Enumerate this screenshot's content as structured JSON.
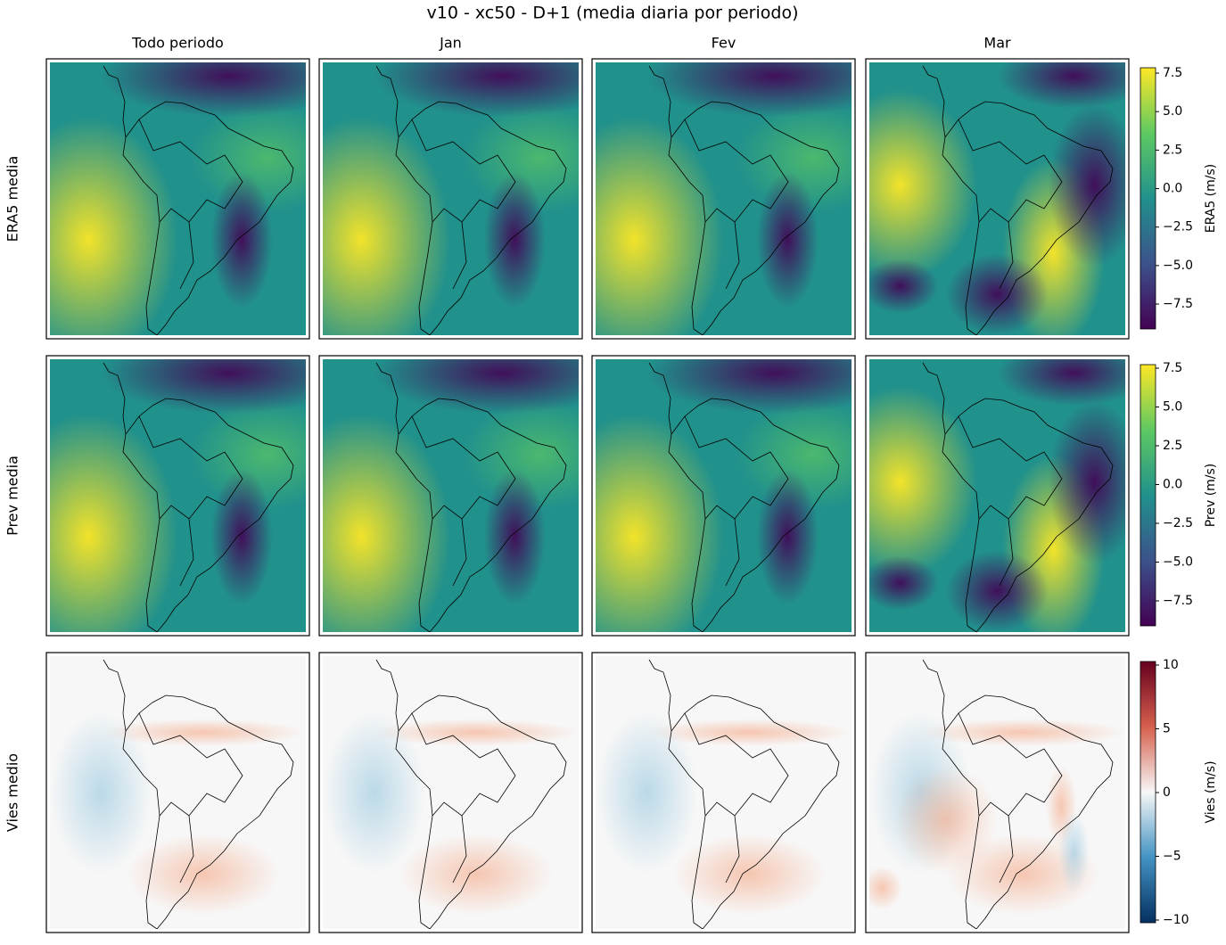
{
  "chart_data": {
    "type": "heatmap",
    "title": "v10 - xc50 - D+1 (media diaria por periodo)",
    "columns": [
      "Todo periodo",
      "Jan",
      "Fev",
      "Mar"
    ],
    "rows": [
      {
        "label": "ERA5 media",
        "colorbar": {
          "label": "ERA5 (m/s)",
          "lim": [
            -9.12,
            7.85
          ],
          "ticks": [
            {
              "value": -7.5,
              "label": "−7.5"
            },
            {
              "value": -5,
              "label": "−5.0"
            },
            {
              "value": -2.5,
              "label": "−2.5"
            },
            {
              "value": 0,
              "label": "0.0"
            },
            2.5,
            {
              "value": 5,
              "label": "5.0"
            },
            7.5
          ],
          "colors": [
            "#440154",
            "#3b528b",
            "#21918c",
            "#5ec962",
            "#fde725"
          ]
        }
      },
      {
        "label": "Prev media",
        "colorbar": {
          "label": "Prev (m/s)",
          "lim": [
            -9.11,
            7.73
          ],
          "ticks": [
            {
              "value": -7.5,
              "label": "−7.5"
            },
            {
              "value": -5,
              "label": "−5.0"
            },
            {
              "value": -2.5,
              "label": "−2.5"
            },
            {
              "value": 0,
              "label": "0.0"
            },
            2.5,
            {
              "value": 5,
              "label": "5.0"
            },
            7.5
          ],
          "colors": [
            "#440154",
            "#3b528b",
            "#21918c",
            "#5ec962",
            "#fde725"
          ]
        }
      },
      {
        "label": "Vies medio",
        "colorbar": {
          "label": "Vies (m/s)",
          "lim": [
            -10.21,
            10.28
          ],
          "ticks": [
            {
              "value": -10,
              "label": "−10"
            },
            {
              "value": -5,
              "label": "−5"
            },
            0,
            5,
            10
          ],
          "colors": [
            "#053061",
            "#4393c3",
            "#f7f7f7",
            "#d6604d",
            "#67001f"
          ]
        }
      }
    ]
  }
}
